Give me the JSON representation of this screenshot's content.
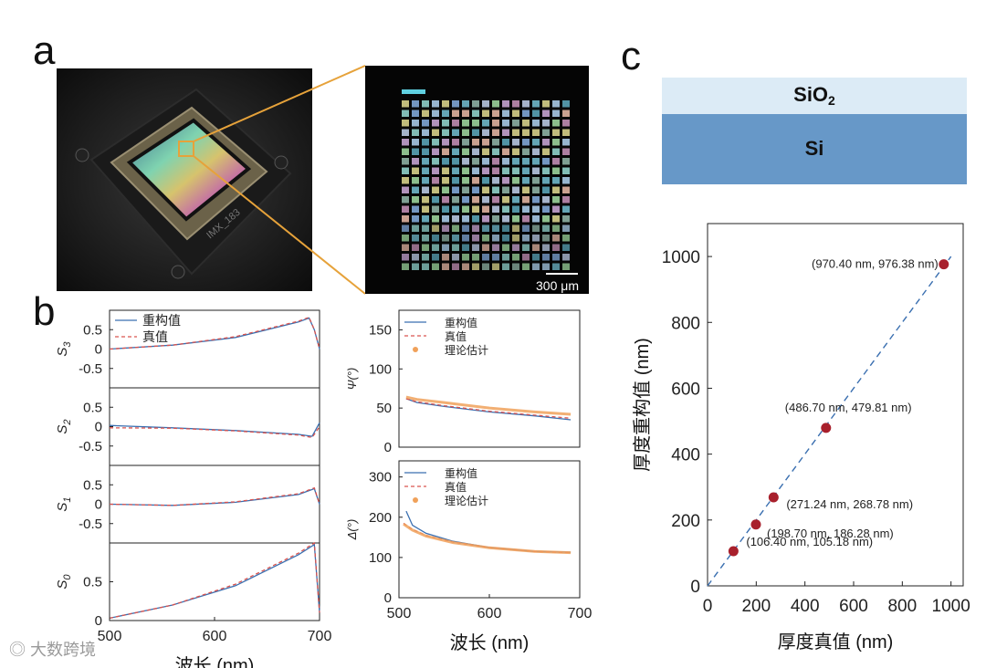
{
  "panels": {
    "a": "a",
    "b": "b",
    "c": "c"
  },
  "photo": {
    "chip_label": "IMX_183",
    "scale_bar_label": "300 μm"
  },
  "layers": {
    "top": "SiO",
    "top_sub": "2",
    "bottom": "Si"
  },
  "watermark": "大数跨境",
  "chart_data": [
    {
      "type": "line",
      "panel": "b-left",
      "subplots": [
        {
          "ylabel": "S3",
          "yticks": [
            "0.5",
            "0",
            "-0.5"
          ],
          "ylim": [
            -1,
            1
          ],
          "series": [
            {
              "name": "重构值",
              "x": [
                500,
                560,
                620,
                680,
                690,
                695,
                700
              ],
              "values": [
                0,
                0.1,
                0.3,
                0.7,
                0.8,
                0.5,
                0
              ]
            },
            {
              "name": "真值",
              "x": [
                500,
                560,
                620,
                680,
                690,
                695,
                700
              ],
              "values": [
                0,
                0.1,
                0.32,
                0.72,
                0.82,
                0.5,
                0
              ]
            }
          ]
        },
        {
          "ylabel": "S2",
          "yticks": [
            "0.5",
            "0",
            "-0.5"
          ],
          "ylim": [
            -1,
            1
          ],
          "series": [
            {
              "name": "重构值",
              "x": [
                500,
                560,
                620,
                680,
                693,
                700
              ],
              "values": [
                0.03,
                -0.03,
                -0.1,
                -0.2,
                -0.25,
                0.1
              ]
            },
            {
              "name": "真值",
              "x": [
                500,
                560,
                620,
                680,
                693,
                700
              ],
              "values": [
                -0.03,
                -0.04,
                -0.11,
                -0.22,
                -0.28,
                0
              ]
            }
          ]
        },
        {
          "ylabel": "S1",
          "yticks": [
            "0.5",
            "0",
            "-0.5"
          ],
          "ylim": [
            -1,
            1
          ],
          "series": [
            {
              "name": "重构值",
              "x": [
                500,
                560,
                620,
                680,
                695,
                700
              ],
              "values": [
                0,
                -0.03,
                0.05,
                0.25,
                0.4,
                0
              ]
            },
            {
              "name": "真值",
              "x": [
                500,
                560,
                620,
                680,
                695,
                700
              ],
              "values": [
                0,
                -0.03,
                0.06,
                0.27,
                0.42,
                0
              ]
            }
          ]
        },
        {
          "ylabel": "S0",
          "yticks": [
            "0.5",
            "0"
          ],
          "ylim": [
            0,
            1
          ],
          "series": [
            {
              "name": "重构值",
              "x": [
                500,
                560,
                620,
                680,
                695,
                700
              ],
              "values": [
                0.03,
                0.2,
                0.45,
                0.85,
                0.98,
                0.1
              ]
            },
            {
              "name": "真值",
              "x": [
                500,
                560,
                620,
                680,
                695,
                700
              ],
              "values": [
                0.03,
                0.2,
                0.47,
                0.87,
                1.0,
                0.1
              ]
            }
          ]
        }
      ],
      "xticks": [
        "500",
        "600",
        "700"
      ],
      "xlim": [
        500,
        700
      ],
      "xlabel": "波长 (nm)",
      "legend": [
        "重构值",
        "真值"
      ]
    },
    {
      "type": "line",
      "panel": "b-right-top",
      "ylabel": "Ψ(°)",
      "yticks": [
        "0",
        "50",
        "100",
        "150"
      ],
      "ylim": [
        0,
        175
      ],
      "xlim": [
        500,
        700
      ],
      "series": [
        {
          "name": "重构值",
          "x": [
            508,
            520,
            550,
            600,
            650,
            690
          ],
          "values": [
            62,
            57,
            52,
            45,
            40,
            35
          ]
        },
        {
          "name": "真值",
          "x": [
            508,
            520,
            550,
            600,
            650,
            690
          ],
          "values": [
            62,
            58,
            53,
            46,
            41,
            37
          ]
        },
        {
          "name": "理论估计",
          "x": [
            508,
            520,
            550,
            600,
            650,
            690
          ],
          "values": [
            64,
            61,
            57,
            50,
            45,
            42
          ]
        }
      ],
      "legend": [
        "重构值",
        "真值",
        "理论估计"
      ]
    },
    {
      "type": "line",
      "panel": "b-right-bottom",
      "ylabel": "Δ(°)",
      "yticks": [
        "0",
        "100",
        "200",
        "300"
      ],
      "ylim": [
        0,
        340
      ],
      "xlim": [
        500,
        700
      ],
      "xticks": [
        "500",
        "600",
        "700"
      ],
      "xlabel": "波长 (nm)",
      "series": [
        {
          "name": "重构值",
          "x": [
            508,
            515,
            530,
            560,
            600,
            650,
            690
          ],
          "values": [
            215,
            180,
            160,
            140,
            125,
            115,
            113
          ]
        },
        {
          "name": "真值",
          "x": [
            505,
            515,
            530,
            560,
            600,
            650,
            690
          ],
          "values": [
            185,
            170,
            155,
            138,
            125,
            115,
            112
          ]
        },
        {
          "name": "理论估计",
          "x": [
            505,
            515,
            530,
            560,
            600,
            650,
            690
          ],
          "values": [
            183,
            168,
            153,
            137,
            124,
            115,
            112
          ]
        }
      ],
      "legend": [
        "重构值",
        "真值",
        "理论估计"
      ]
    },
    {
      "type": "scatter",
      "panel": "c",
      "xlabel": "厚度真值 (nm)",
      "ylabel": "厚度重构值 (nm)",
      "xlim": [
        0,
        1050
      ],
      "ylim": [
        0,
        1100
      ],
      "xticks": [
        "0",
        "200",
        "400",
        "600",
        "800",
        "1000"
      ],
      "yticks": [
        "0",
        "200",
        "400",
        "600",
        "800",
        "1000"
      ],
      "points": [
        {
          "x": 106.4,
          "y": 105.18,
          "label": "(106.40 nm, 105.18 nm)"
        },
        {
          "x": 198.7,
          "y": 186.28,
          "label": "(198.70 nm, 186.28 nm)"
        },
        {
          "x": 271.24,
          "y": 268.78,
          "label": "(271.24 nm, 268.78 nm)"
        },
        {
          "x": 486.7,
          "y": 479.81,
          "label": "(486.70 nm, 479.81 nm)"
        },
        {
          "x": 970.4,
          "y": 976.38,
          "label": "(970.40 nm, 976.38 nm)"
        }
      ],
      "reference_line": "y = x",
      "point_color": "#a8202c",
      "line_color": "#3a6fb0"
    }
  ]
}
